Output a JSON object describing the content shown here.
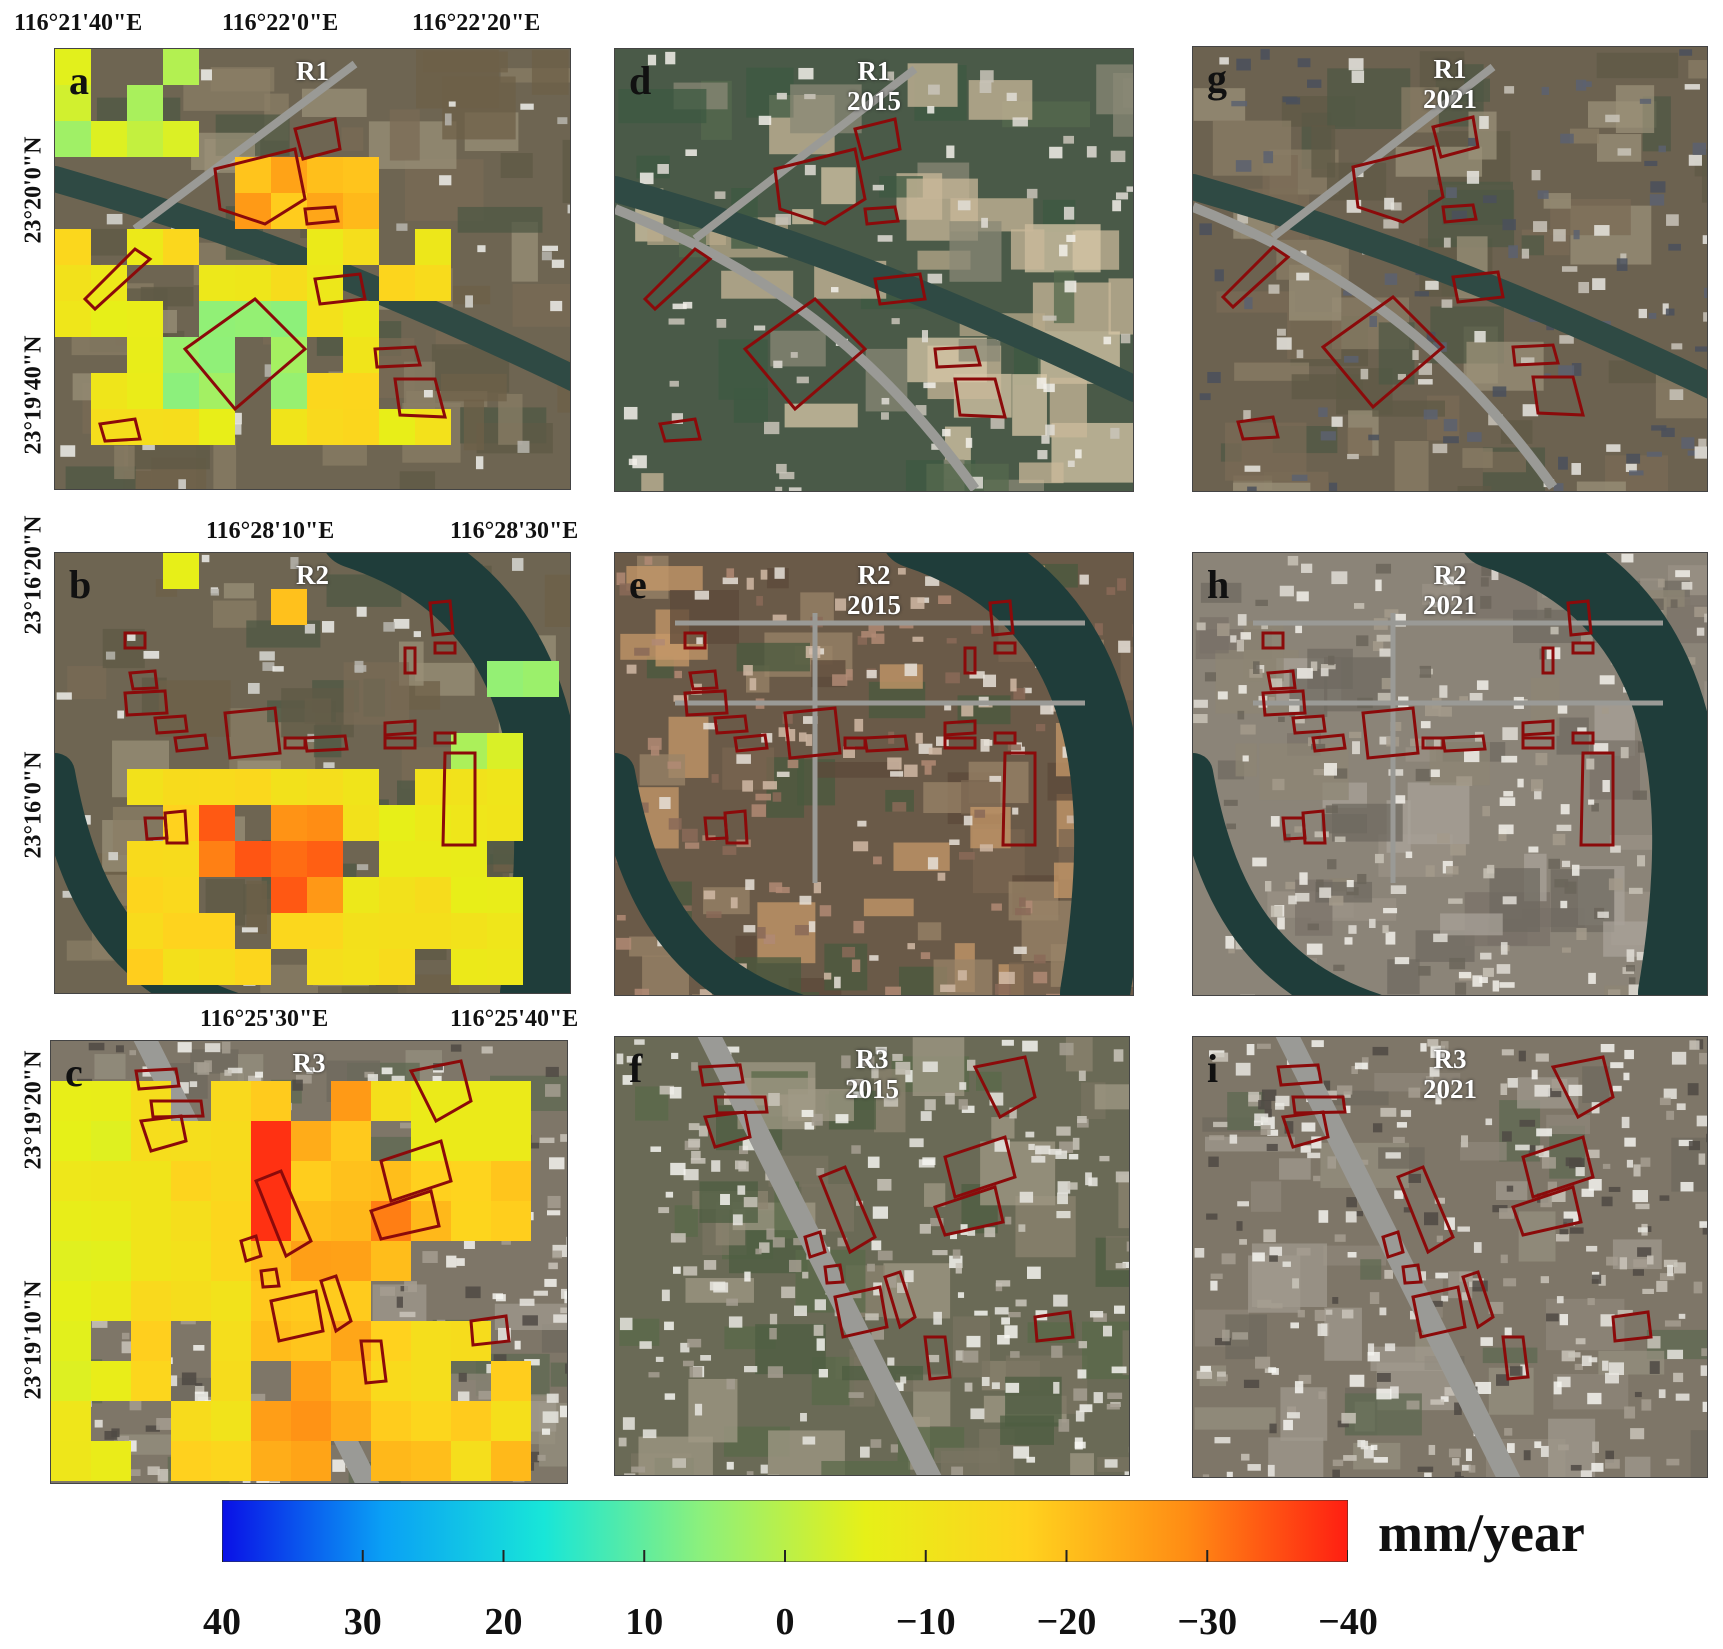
{
  "panels": [
    {
      "id": "a",
      "letter": "a",
      "title": "R1",
      "subtitle": ""
    },
    {
      "id": "b",
      "letter": "b",
      "title": "R2",
      "subtitle": ""
    },
    {
      "id": "c",
      "letter": "c",
      "title": "R3",
      "subtitle": ""
    },
    {
      "id": "d",
      "letter": "d",
      "title": "R1",
      "subtitle": "2015"
    },
    {
      "id": "e",
      "letter": "e",
      "title": "R2",
      "subtitle": "2015"
    },
    {
      "id": "f",
      "letter": "f",
      "title": "R3",
      "subtitle": "2015"
    },
    {
      "id": "g",
      "letter": "g",
      "title": "R1",
      "subtitle": "2021"
    },
    {
      "id": "h",
      "letter": "h",
      "title": "R2",
      "subtitle": "2021"
    },
    {
      "id": "i",
      "letter": "i",
      "title": "R3",
      "subtitle": "2021"
    }
  ],
  "coords": {
    "r1_lon": [
      "116°21'40\"E",
      "116°22'0\"E",
      "116°22'20\"E"
    ],
    "r1_lat": [
      "23°20'0\"N",
      "23°19'40\"N"
    ],
    "r2_lon": [
      "116°28'10\"E",
      "116°28'30\"E"
    ],
    "r2_lat": [
      "23°16'20\"N",
      "23°16'0\"N"
    ],
    "r3_lon": [
      "116°25'30\"E",
      "116°25'40\"E"
    ],
    "r3_lat": [
      "23°19'20\"N",
      "23°19'10\"N"
    ]
  },
  "colorbar": {
    "unit": "mm/year",
    "ticks": [
      "40",
      "30",
      "20",
      "10",
      "0",
      "−10",
      "−20",
      "−30",
      "−40"
    ],
    "range": [
      40,
      -40
    ],
    "stops": [
      "#0a10e6",
      "#0aa0f5",
      "#18e6d8",
      "#8ef07a",
      "#e6f018",
      "#ffd21e",
      "#ff8c14",
      "#ff1e12"
    ]
  },
  "colors": {
    "polygon_outline": "#8b0a0a",
    "title_text": "#ffffff"
  }
}
